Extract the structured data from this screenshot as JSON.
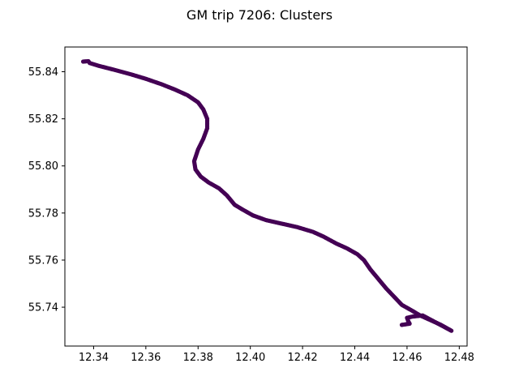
{
  "chart_data": {
    "type": "scatter",
    "title": "GM trip 7206: Clusters",
    "xlabel": "",
    "ylabel": "",
    "xlim": [
      12.329,
      12.483
    ],
    "ylim": [
      55.7235,
      55.8505
    ],
    "xticks": [
      12.34,
      12.36,
      12.38,
      12.4,
      12.42,
      12.44,
      12.46,
      12.48
    ],
    "yticks": [
      55.74,
      55.76,
      55.78,
      55.8,
      55.82,
      55.84
    ],
    "xtick_labels": [
      "12.34",
      "12.36",
      "12.38",
      "12.40",
      "12.42",
      "12.44",
      "12.46",
      "12.48"
    ],
    "ytick_labels": [
      "55.74",
      "55.76",
      "55.78",
      "55.80",
      "55.82",
      "55.84"
    ],
    "grid": false,
    "marker_color": "#440154",
    "series": [
      {
        "points": [
          [
            12.336,
            55.8443
          ],
          [
            12.338,
            55.8445
          ],
          [
            12.3385,
            55.8437
          ],
          [
            12.342,
            55.8425
          ],
          [
            12.348,
            55.8408
          ],
          [
            12.354,
            55.839
          ],
          [
            12.36,
            55.837
          ],
          [
            12.366,
            55.8347
          ],
          [
            12.371,
            55.8325
          ],
          [
            12.376,
            55.83
          ],
          [
            12.38,
            55.827
          ],
          [
            12.382,
            55.824
          ],
          [
            12.3835,
            55.82
          ],
          [
            12.3835,
            55.816
          ],
          [
            12.382,
            55.8115
          ],
          [
            12.38,
            55.807
          ],
          [
            12.3785,
            55.802
          ],
          [
            12.379,
            55.7985
          ],
          [
            12.381,
            55.7955
          ],
          [
            12.384,
            55.793
          ],
          [
            12.388,
            55.7905
          ],
          [
            12.391,
            55.7875
          ],
          [
            12.394,
            55.7835
          ],
          [
            12.397,
            55.7815
          ],
          [
            12.401,
            55.779
          ],
          [
            12.406,
            55.777
          ],
          [
            12.412,
            55.7755
          ],
          [
            12.418,
            55.774
          ],
          [
            12.424,
            55.772
          ],
          [
            12.428,
            55.77
          ],
          [
            12.433,
            55.767
          ],
          [
            12.437,
            55.765
          ],
          [
            12.441,
            55.7625
          ],
          [
            12.4435,
            55.76
          ],
          [
            12.446,
            55.756
          ],
          [
            12.449,
            55.752
          ],
          [
            12.452,
            55.748
          ],
          [
            12.455,
            55.7445
          ],
          [
            12.458,
            55.741
          ],
          [
            12.462,
            55.7385
          ],
          [
            12.465,
            55.7365
          ],
          [
            12.469,
            55.7345
          ],
          [
            12.473,
            55.7325
          ],
          [
            12.477,
            55.73
          ],
          [
            12.466,
            55.7365
          ],
          [
            12.462,
            55.736
          ],
          [
            12.46,
            55.7355
          ],
          [
            12.4605,
            55.734
          ],
          [
            12.461,
            55.733
          ],
          [
            12.458,
            55.7325
          ]
        ]
      }
    ]
  }
}
